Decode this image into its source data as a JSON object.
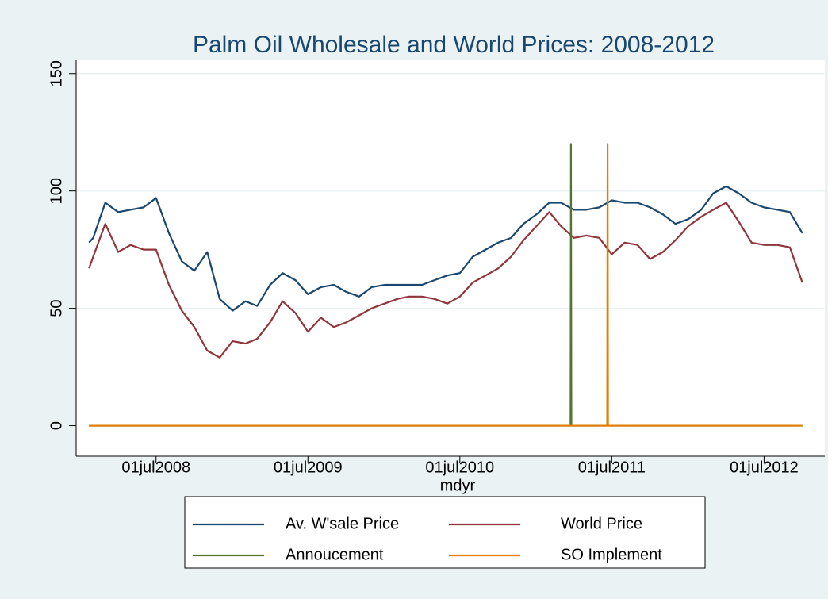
{
  "chart_data": {
    "type": "line",
    "title": "Palm Oil Wholesale and World Prices: 2008-2012",
    "x_label": "mdyr",
    "x": [
      "2008-01-22",
      "2008-02-01",
      "2008-03-01",
      "2008-04-01",
      "2008-05-01",
      "2008-06-01",
      "2008-07-01",
      "2008-08-01",
      "2008-09-01",
      "2008-10-01",
      "2008-11-01",
      "2008-12-01",
      "2009-01-01",
      "2009-02-01",
      "2009-03-01",
      "2009-04-01",
      "2009-05-01",
      "2009-06-01",
      "2009-07-01",
      "2009-08-01",
      "2009-09-01",
      "2009-10-01",
      "2009-11-01",
      "2009-12-01",
      "2010-01-01",
      "2010-02-01",
      "2010-03-01",
      "2010-04-01",
      "2010-05-01",
      "2010-06-01",
      "2010-07-01",
      "2010-08-01",
      "2010-09-01",
      "2010-10-01",
      "2010-11-01",
      "2010-12-01",
      "2011-01-01",
      "2011-02-01",
      "2011-03-01",
      "2011-04-01",
      "2011-05-01",
      "2011-06-01",
      "2011-07-01",
      "2011-08-01",
      "2011-09-01",
      "2011-10-01",
      "2011-11-01",
      "2011-12-01",
      "2012-01-01",
      "2012-02-01",
      "2012-03-01",
      "2012-04-01",
      "2012-05-01",
      "2012-06-01",
      "2012-07-01",
      "2012-08-01",
      "2012-09-01",
      "2012-10-01"
    ],
    "series": [
      {
        "name": "Av. W'sale Price",
        "color": "#1a476f",
        "values": [
          78,
          80,
          95,
          91,
          92,
          93,
          97,
          82,
          70,
          66,
          74,
          54,
          49,
          53,
          51,
          60,
          65,
          62,
          56,
          59,
          60,
          57,
          55,
          59,
          60,
          60,
          60,
          60,
          62,
          64,
          65,
          72,
          75,
          78,
          80,
          86,
          90,
          95,
          95,
          92,
          92,
          93,
          96,
          95,
          95,
          93,
          90,
          86,
          88,
          92,
          99,
          102,
          99,
          95,
          93,
          92,
          91,
          82
        ]
      },
      {
        "name": "World Price",
        "color": "#90353b",
        "values": [
          67,
          72,
          86,
          74,
          77,
          75,
          75,
          60,
          49,
          42,
          32,
          29,
          36,
          35,
          37,
          44,
          53,
          48,
          40,
          46,
          42,
          44,
          47,
          50,
          52,
          54,
          55,
          55,
          54,
          52,
          55,
          61,
          64,
          67,
          72,
          79,
          85,
          91,
          85,
          80,
          81,
          80,
          73,
          78,
          77,
          71,
          74,
          79,
          85,
          89,
          92,
          95,
          87,
          78,
          77,
          77,
          76,
          61
        ]
      },
      {
        "name": "Annoucement",
        "color": "#55752f",
        "x": [
          "2008-01-22",
          "2011-03-24",
          "2011-03-25",
          "2011-03-26",
          "2012-10-01"
        ],
        "values": [
          0,
          0,
          120,
          0,
          0
        ]
      },
      {
        "name": "SO Implement",
        "color": "#e37e00",
        "x": [
          "2008-01-22",
          "2011-06-20",
          "2011-06-21",
          "2011-06-22",
          "2012-10-01"
        ],
        "values": [
          0,
          0,
          120,
          0,
          0
        ]
      }
    ],
    "xlim": [
      "2007-12-22",
      "2012-11-24"
    ],
    "xticks": [
      {
        "value": "2008-07-01",
        "label": "01jul2008"
      },
      {
        "value": "2009-07-01",
        "label": "01jul2009"
      },
      {
        "value": "2010-07-01",
        "label": "01jul2010"
      },
      {
        "value": "2011-07-01",
        "label": "01jul2011"
      },
      {
        "value": "2012-07-01",
        "label": "01jul2012"
      }
    ],
    "ylim": [
      -13,
      156
    ],
    "yticks": [
      0,
      50,
      100,
      150
    ],
    "grid": true,
    "legend": "bottom"
  }
}
